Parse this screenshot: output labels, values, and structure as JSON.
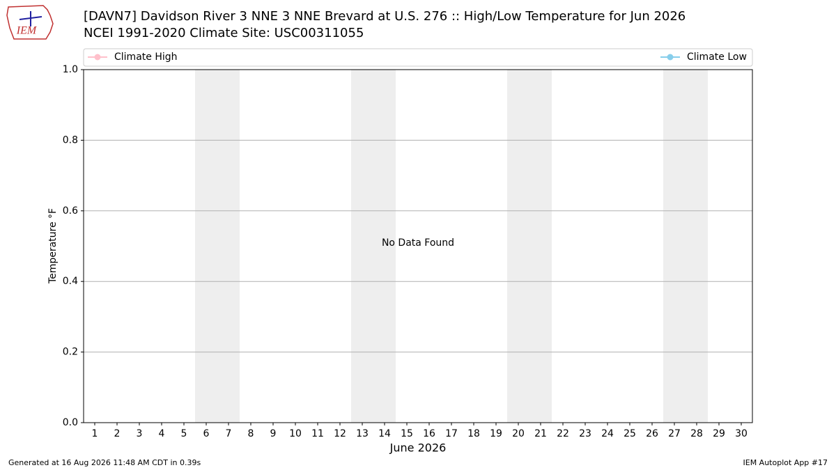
{
  "chart_data": {
    "type": "line",
    "title": "[DAVN7] Davidson River 3 NNE 3 NNE Brevard at U.S. 276 :: High/Low Temperature for Jun 2026",
    "subtitle": "NCEI 1991-2020 Climate Site: USC00311055",
    "ylabel": "Temperature °F",
    "xlabel": "June 2026",
    "x": [
      1,
      2,
      3,
      4,
      5,
      6,
      7,
      8,
      9,
      10,
      11,
      12,
      13,
      14,
      15,
      16,
      17,
      18,
      19,
      20,
      21,
      22,
      23,
      24,
      25,
      26,
      27,
      28,
      29,
      30
    ],
    "series": [
      {
        "name": "Climate High",
        "color": "#ffc0cb",
        "values": [
          null,
          null,
          null,
          null,
          null,
          null,
          null,
          null,
          null,
          null,
          null,
          null,
          null,
          null,
          null,
          null,
          null,
          null,
          null,
          null,
          null,
          null,
          null,
          null,
          null,
          null,
          null,
          null,
          null,
          null
        ]
      },
      {
        "name": "Climate Low",
        "color": "#87ceeb",
        "values": [
          null,
          null,
          null,
          null,
          null,
          null,
          null,
          null,
          null,
          null,
          null,
          null,
          null,
          null,
          null,
          null,
          null,
          null,
          null,
          null,
          null,
          null,
          null,
          null,
          null,
          null,
          null,
          null,
          null,
          null
        ]
      }
    ],
    "xlim": [
      0.5,
      30.5
    ],
    "xticks": [
      1,
      2,
      3,
      4,
      5,
      6,
      7,
      8,
      9,
      10,
      11,
      12,
      13,
      14,
      15,
      16,
      17,
      18,
      19,
      20,
      21,
      22,
      23,
      24,
      25,
      26,
      27,
      28,
      29,
      30
    ],
    "ylim": [
      0,
      1
    ],
    "yticks": [
      {
        "value": 0,
        "label": "0.0"
      },
      0.2,
      0.4,
      0.6,
      0.8,
      {
        "value": 1,
        "label": "1.0"
      }
    ],
    "grid": true,
    "weekend_shading": [
      [
        6,
        7
      ],
      [
        13,
        14
      ],
      [
        20,
        21
      ],
      [
        27,
        28
      ]
    ],
    "annotation": "No Data Found",
    "logo_text": "IEM",
    "footer_left": "Generated at 16 Aug 2026 11:48 AM CDT in 0.39s",
    "footer_right": "IEM Autoplot App #17"
  }
}
